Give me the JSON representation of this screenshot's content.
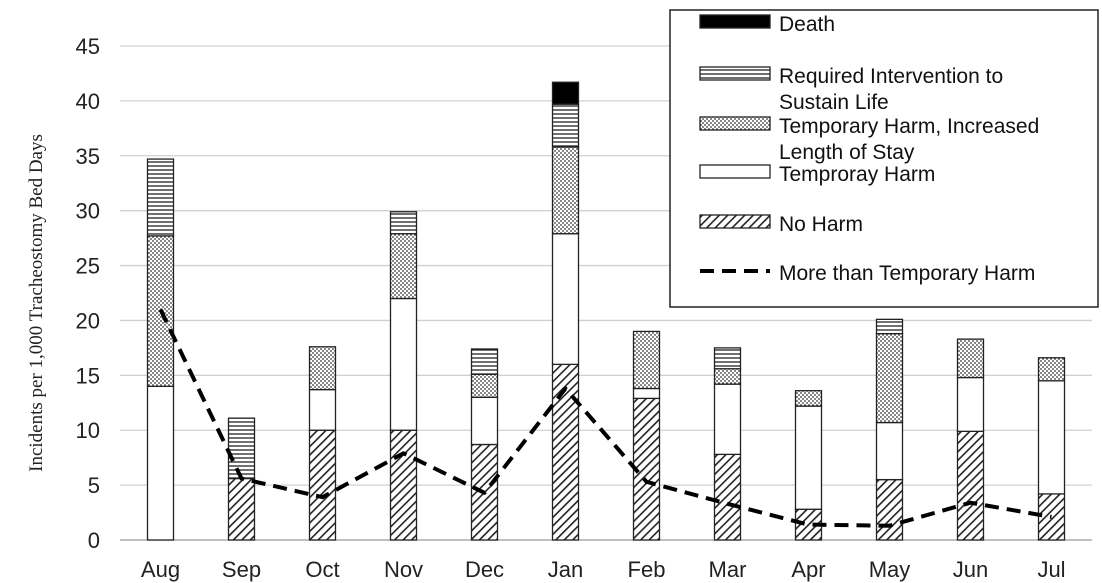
{
  "chart_data": {
    "type": "bar",
    "stacked": true,
    "ylabel": "Incidents per 1,000 Tracheostomy Bed Days",
    "xlabel": "",
    "ylim": [
      0,
      45
    ],
    "yticks": [
      "0",
      "5",
      "10",
      "15",
      "20",
      "25",
      "30",
      "35",
      "40",
      "45"
    ],
    "grid": true,
    "legend_position": "top-right",
    "categories": [
      "Aug",
      "Sep",
      "Oct",
      "Nov",
      "Dec",
      "Jan",
      "Feb",
      "Mar",
      "Apr",
      "May",
      "Jun",
      "Jul"
    ],
    "series": [
      {
        "name": "No Harm",
        "pattern": "diagonal-hatch",
        "values": [
          0,
          5.6,
          10,
          10,
          8.7,
          16,
          12.9,
          7.8,
          2.8,
          5.5,
          9.9,
          4.2
        ]
      },
      {
        "name": "Temproray Harm",
        "pattern": "white",
        "values": [
          14,
          0,
          3.7,
          12,
          4.3,
          11.9,
          0.9,
          6.4,
          9.4,
          5.2,
          4.9,
          10.3
        ]
      },
      {
        "name": "Temporary Harm, Increased Length of Stay",
        "pattern": "dotted",
        "values": [
          13.7,
          0,
          3.9,
          5.9,
          2.1,
          7.9,
          5.2,
          1.4,
          1.4,
          8.1,
          3.5,
          2.1
        ]
      },
      {
        "name": "Required Intervention to Sustain Life",
        "pattern": "horizontal-lines",
        "values": [
          7,
          5.5,
          0,
          2,
          2.3,
          3.9,
          0,
          1.9,
          0,
          1.3,
          0,
          0
        ]
      },
      {
        "name": "Death",
        "pattern": "solid-black",
        "values": [
          0,
          0,
          0,
          0,
          0,
          2,
          0,
          0,
          0,
          0,
          0,
          0
        ]
      }
    ],
    "line_series": {
      "name": "More than Temporary Harm",
      "style": "dashed",
      "values": [
        21,
        5.6,
        3.9,
        7.9,
        4.3,
        13.8,
        5.3,
        3.3,
        1.4,
        1.3,
        3.4,
        2.1
      ]
    },
    "legend_order": [
      "Death",
      "Required Intervention to Sustain Life",
      "Temporary Harm, Increased Length of Stay",
      "Temproray Harm",
      "No Harm",
      "More than Temporary Harm"
    ],
    "legend_lines": {
      "Death": [
        "Death"
      ],
      "Required Intervention to Sustain Life": [
        "Required Intervention to",
        "Sustain Life"
      ],
      "Temporary Harm, Increased Length of Stay": [
        "Temporary Harm, Increased",
        "Length of Stay"
      ],
      "Temproray Harm": [
        "Temproray Harm"
      ],
      "No Harm": [
        "No Harm"
      ],
      "More than Temporary Harm": [
        "More than Temporary Harm"
      ]
    }
  }
}
